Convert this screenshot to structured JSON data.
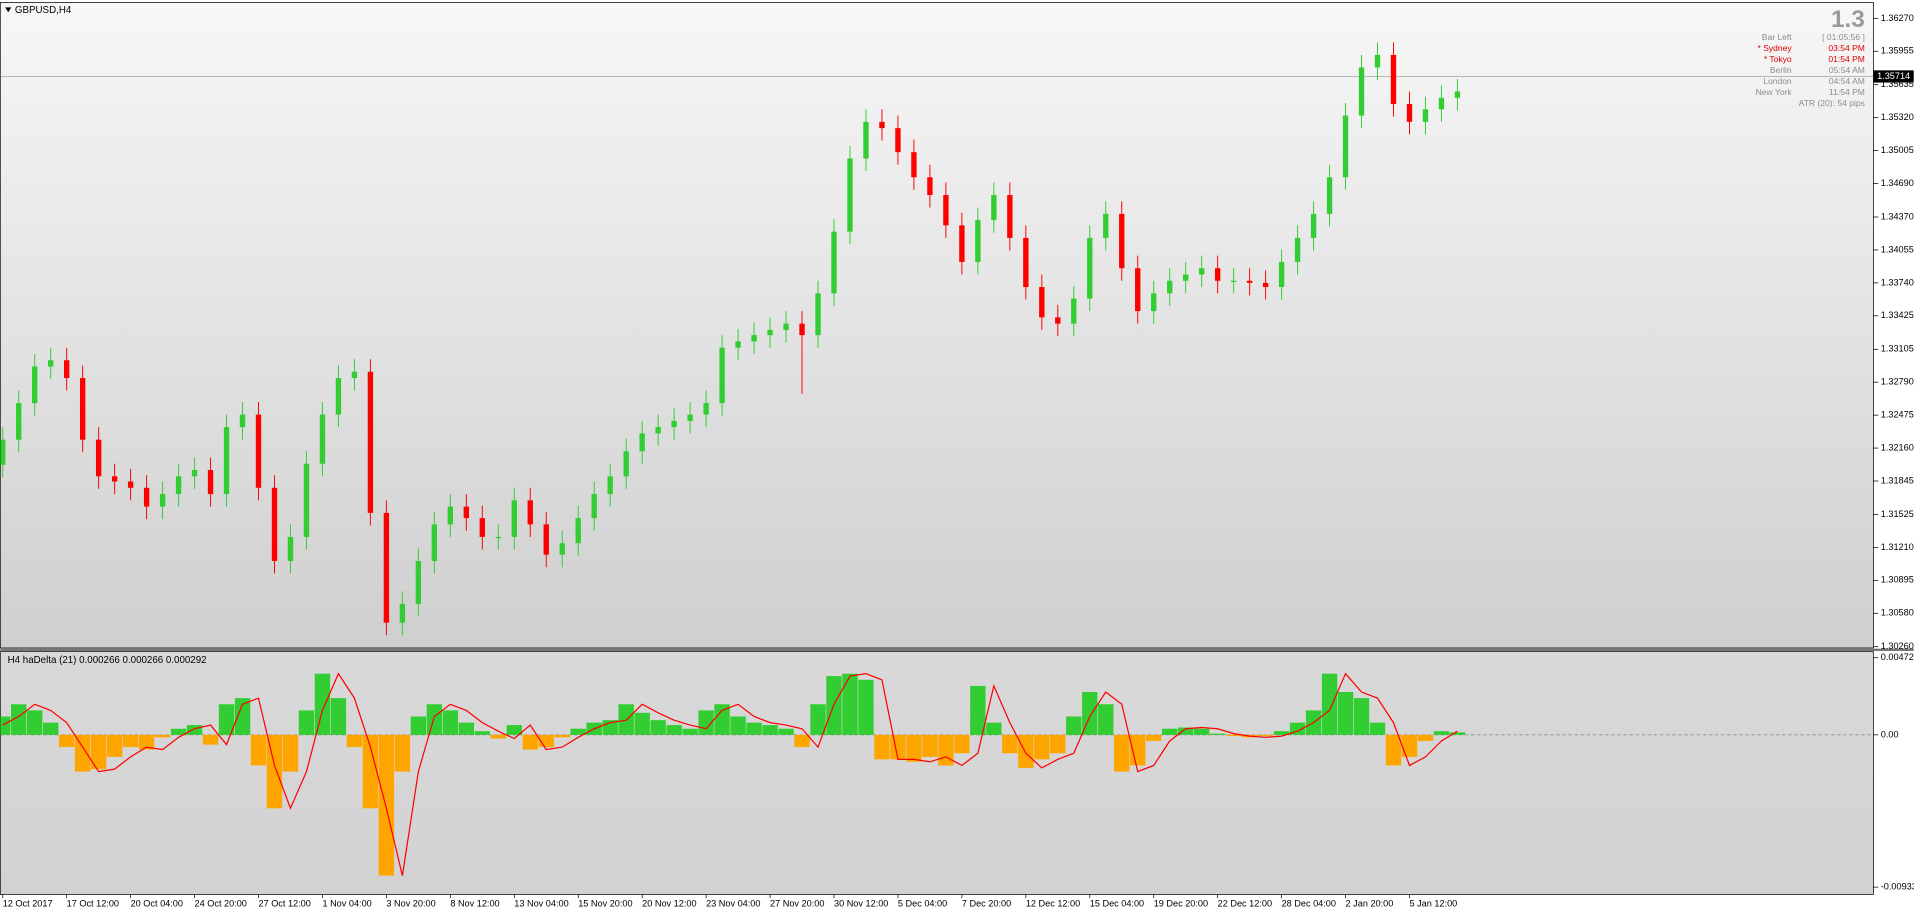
{
  "window_title": "GBPUSD,H4",
  "info_panel": {
    "big": "1.3",
    "rows": [
      {
        "label": "Bar Left",
        "time": "[ 01:05:56 ]",
        "color": "#8c8c8c"
      },
      {
        "label": "* Sydney",
        "time": "03:54 PM",
        "color": "#e00000"
      },
      {
        "label": "* Tokyo",
        "time": "01:54 PM",
        "color": "#e00000"
      },
      {
        "label": "Berlin",
        "time": "05:54 AM",
        "color": "#8c8c8c"
      },
      {
        "label": "London",
        "time": "04:54 AM",
        "color": "#8c8c8c"
      },
      {
        "label": "New York",
        "time": "11:54 PM",
        "color": "#8c8c8c"
      }
    ],
    "atr": "ATR (20): 54 pips"
  },
  "chart_data": [
    {
      "type": "candlestick",
      "categories": [
        "12 Oct 2017",
        null,
        null,
        null,
        "17 Oct 12:00",
        null,
        null,
        null,
        "20 Oct 04:00",
        null,
        null,
        null,
        "24 Oct 20:00",
        null,
        null,
        null,
        "27 Oct 12:00",
        null,
        null,
        null,
        "1 Nov 04:00",
        null,
        null,
        null,
        "3 Nov 20:00",
        null,
        null,
        null,
        "8 Nov 12:00",
        null,
        null,
        null,
        "13 Nov 04:00",
        null,
        null,
        null,
        "15 Nov 20:00",
        null,
        null,
        null,
        "20 Nov 12:00",
        null,
        null,
        null,
        "23 Nov 04:00",
        null,
        null,
        null,
        "27 Nov 20:00",
        null,
        null,
        null,
        "30 Nov 12:00",
        null,
        null,
        null,
        "5 Dec 04:00",
        null,
        null,
        null,
        "7 Dec 20:00",
        null,
        null,
        null,
        "12 Dec 12:00",
        null,
        null,
        null,
        "15 Dec 04:00",
        null,
        null,
        null,
        "19 Dec 20:00",
        null,
        null,
        null,
        "22 Dec 12:00",
        null,
        null,
        null,
        "28 Dec 04:00",
        null,
        null,
        null,
        "2 Jan 20:00",
        null,
        null,
        null,
        "5 Jan 12:00",
        null,
        null,
        null
      ],
      "open": [
        1.32,
        1.3224,
        1.3259,
        1.3294,
        1.33,
        1.3283,
        1.3224,
        1.3189,
        1.3184,
        1.3178,
        1.316,
        1.3172,
        1.3189,
        1.3195,
        1.3172,
        1.3236,
        1.3248,
        1.3178,
        1.3108,
        1.3131,
        1.3201,
        1.3248,
        1.3283,
        1.3289,
        1.3154,
        1.3049,
        1.3067,
        1.3108,
        1.3143,
        1.316,
        1.3149,
        1.3131,
        1.3131,
        1.3166,
        1.3143,
        1.3114,
        1.3125,
        1.3149,
        1.3172,
        1.3189,
        1.3213,
        1.323,
        1.3236,
        1.3242,
        1.3248,
        1.3259,
        1.3312,
        1.3318,
        1.3324,
        1.3329,
        1.3335,
        1.3324,
        1.3364,
        1.3423,
        1.3493,
        1.3528,
        1.3522,
        1.3499,
        1.3475,
        1.3458,
        1.3429,
        1.3394,
        1.3434,
        1.3458,
        1.3417,
        1.337,
        1.3341,
        1.3335,
        1.3359,
        1.3417,
        1.344,
        1.3388,
        1.3347,
        1.3364,
        1.3376,
        1.3382,
        1.3388,
        1.3376,
        1.3376,
        1.3374,
        1.337,
        1.3394,
        1.3417,
        1.344,
        1.3475,
        1.3534,
        1.358,
        1.3592,
        1.3545,
        1.3528,
        1.354,
        1.3551
      ],
      "high": [
        1.3236,
        1.3271,
        1.3306,
        1.3312,
        1.3312,
        1.3295,
        1.3236,
        1.3201,
        1.3196,
        1.319,
        1.3184,
        1.3201,
        1.3207,
        1.3207,
        1.3248,
        1.326,
        1.326,
        1.319,
        1.3143,
        1.3213,
        1.326,
        1.3295,
        1.3301,
        1.3301,
        1.3166,
        1.3079,
        1.312,
        1.3155,
        1.3172,
        1.3172,
        1.3161,
        1.3143,
        1.3178,
        1.3178,
        1.3155,
        1.3137,
        1.3161,
        1.3184,
        1.3201,
        1.3225,
        1.3242,
        1.3248,
        1.3254,
        1.326,
        1.3271,
        1.3324,
        1.333,
        1.3336,
        1.3341,
        1.3347,
        1.3347,
        1.3376,
        1.3435,
        1.3505,
        1.354,
        1.354,
        1.3534,
        1.3511,
        1.3487,
        1.347,
        1.3441,
        1.3446,
        1.347,
        1.347,
        1.3429,
        1.3382,
        1.3353,
        1.3371,
        1.3429,
        1.3452,
        1.3452,
        1.34,
        1.3376,
        1.3388,
        1.3394,
        1.34,
        1.34,
        1.3388,
        1.3388,
        1.3386,
        1.3406,
        1.3429,
        1.3452,
        1.3487,
        1.3546,
        1.3592,
        1.3604,
        1.3604,
        1.3557,
        1.3552,
        1.3563,
        1.3569
      ],
      "low": [
        1.3188,
        1.3212,
        1.3247,
        1.3282,
        1.3271,
        1.3212,
        1.3177,
        1.3172,
        1.3166,
        1.3148,
        1.3148,
        1.316,
        1.3177,
        1.316,
        1.316,
        1.3224,
        1.3166,
        1.3096,
        1.3096,
        1.3119,
        1.3189,
        1.3236,
        1.3271,
        1.3142,
        1.3037,
        1.3037,
        1.3055,
        1.3096,
        1.3131,
        1.3137,
        1.3119,
        1.3119,
        1.3119,
        1.3131,
        1.3102,
        1.3102,
        1.3113,
        1.3137,
        1.316,
        1.3177,
        1.3201,
        1.3218,
        1.3224,
        1.323,
        1.3236,
        1.3247,
        1.33,
        1.3306,
        1.3312,
        1.3317,
        1.3268,
        1.3312,
        1.3352,
        1.3411,
        1.3481,
        1.351,
        1.3487,
        1.3463,
        1.3446,
        1.3417,
        1.3382,
        1.3382,
        1.3422,
        1.3405,
        1.3358,
        1.3329,
        1.3323,
        1.3323,
        1.3347,
        1.3405,
        1.3376,
        1.3335,
        1.3335,
        1.3352,
        1.3364,
        1.337,
        1.3364,
        1.3364,
        1.3362,
        1.3358,
        1.3358,
        1.3382,
        1.3405,
        1.3428,
        1.3463,
        1.3522,
        1.3568,
        1.3533,
        1.3516,
        1.3516,
        1.3528,
        1.3539
      ],
      "close": [
        1.3224,
        1.3259,
        1.3294,
        1.33,
        1.3283,
        1.3224,
        1.3189,
        1.3184,
        1.3178,
        1.316,
        1.3172,
        1.3189,
        1.3195,
        1.3172,
        1.3236,
        1.3248,
        1.3178,
        1.3108,
        1.3131,
        1.3201,
        1.3248,
        1.3283,
        1.3289,
        1.3154,
        1.3049,
        1.3067,
        1.3108,
        1.3143,
        1.316,
        1.3149,
        1.3131,
        1.3131,
        1.3166,
        1.3143,
        1.3114,
        1.3125,
        1.3149,
        1.3172,
        1.3189,
        1.3213,
        1.323,
        1.3236,
        1.3242,
        1.3248,
        1.3259,
        1.3312,
        1.3318,
        1.3324,
        1.3329,
        1.3335,
        1.3324,
        1.3364,
        1.3423,
        1.3493,
        1.3528,
        1.3522,
        1.3499,
        1.3475,
        1.3458,
        1.3429,
        1.3394,
        1.3434,
        1.3458,
        1.3417,
        1.337,
        1.3341,
        1.3335,
        1.3359,
        1.3417,
        1.344,
        1.3388,
        1.3347,
        1.3364,
        1.3376,
        1.3382,
        1.3388,
        1.3376,
        1.3376,
        1.3374,
        1.337,
        1.3394,
        1.3417,
        1.344,
        1.3475,
        1.3534,
        1.358,
        1.3592,
        1.3545,
        1.3528,
        1.354,
        1.3551,
        1.3557
      ],
      "up_color": "#32cd32",
      "down_color": "#ff0000",
      "current_price": 1.35714,
      "ylim": [
        1.30248,
        1.36422
      ],
      "yticks": [
        {
          "value": 1.3627,
          "label": "1.36270"
        },
        1.35955,
        1.35635,
        {
          "value": 1.3532,
          "label": "1.35320"
        },
        1.35005,
        {
          "value": 1.3469,
          "label": "1.34690"
        },
        {
          "value": 1.3437,
          "label": "1.34370"
        },
        1.34055,
        {
          "value": 1.3374,
          "label": "1.33740"
        },
        1.33425,
        1.33105,
        {
          "value": 1.3279,
          "label": "1.32790"
        },
        1.32475,
        {
          "value": 1.3216,
          "label": "1.32160"
        },
        1.31845,
        1.31525,
        {
          "value": 1.3121,
          "label": "1.31210"
        },
        1.30895,
        {
          "value": 1.3058,
          "label": "1.30580"
        },
        {
          "value": 1.3026,
          "label": "1.30260"
        }
      ]
    },
    {
      "type": "histogram",
      "title": "H4 haDelta (21) 0.000266 0.000266 0.000292",
      "values": [
        0.001125,
        0.001875,
        0.0015,
        0.00075,
        -0.00075,
        -0.00225,
        -0.0021,
        -0.00135,
        -0.00075,
        -0.0009,
        -0.00015,
        0.000375,
        0.0006,
        -0.0006,
        0.001875,
        0.00225,
        -0.001875,
        -0.0045,
        -0.00225,
        0.0015,
        0.00375,
        0.00225,
        -0.00075,
        -0.0045,
        -0.008625,
        -0.00225,
        0.001125,
        0.001875,
        0.0015,
        0.00075,
        0.000225,
        -0.000225,
        0.0006,
        -0.0009,
        -0.00075,
        -0.00015,
        0.000375,
        0.00075,
        0.0009,
        0.001875,
        0.00135,
        0.0009,
        0.0006,
        0.000375,
        0.0015,
        0.001875,
        0.001125,
        0.00075,
        0.0006,
        0.000375,
        -0.00075,
        0.001875,
        0.0036,
        0.00375,
        0.003375,
        -0.0015,
        -0.0015,
        -0.00165,
        -0.00135,
        -0.001875,
        -0.001125,
        0.003,
        0.00075,
        -0.001125,
        -0.002025,
        -0.0015,
        -0.001125,
        0.001125,
        0.002625,
        0.001875,
        -0.00225,
        -0.001875,
        -0.000375,
        0.000375,
        0.00045,
        0.000375,
        7.5e-05,
        -7.5e-05,
        -0.00015,
        -7.5e-05,
        0.000225,
        0.00075,
        0.0015,
        0.00375,
        0.002625,
        0.00225,
        0.00075,
        -0.001875,
        -0.00135,
        -0.000375,
        0.000225,
        0.00015
      ],
      "pos_color": "#32cd32",
      "neg_color": "#ffa500",
      "signal": {
        "color": "#ff0000",
        "values": [
          0.0006,
          0.001125,
          0.001875,
          0.0015,
          0.00075,
          -0.00075,
          -0.00225,
          -0.0021,
          -0.00135,
          -0.00075,
          -0.0009,
          -0.00015,
          0.000375,
          0.0006,
          -0.0006,
          0.001875,
          0.00225,
          -0.001875,
          -0.0045,
          -0.00225,
          0.0015,
          0.00375,
          0.00225,
          -0.00075,
          -0.0045,
          -0.008625,
          -0.00225,
          0.001125,
          0.001875,
          0.0015,
          0.00075,
          0.000225,
          -0.000225,
          0.0006,
          -0.0009,
          -0.00075,
          -0.00015,
          0.000375,
          0.00075,
          0.0009,
          0.001875,
          0.00135,
          0.0009,
          0.0006,
          0.000375,
          0.0015,
          0.001875,
          0.001125,
          0.00075,
          0.0006,
          0.000375,
          -0.00075,
          0.001875,
          0.0036,
          0.00375,
          0.003375,
          -0.0015,
          -0.0015,
          -0.00165,
          -0.00135,
          -0.001875,
          -0.001125,
          0.003,
          0.00075,
          -0.001125,
          -0.002025,
          -0.0015,
          -0.001125,
          0.001125,
          0.002625,
          0.001875,
          -0.00225,
          -0.001875,
          -0.000375,
          0.000375,
          0.00045,
          0.000375,
          7.5e-05,
          -7.5e-05,
          -0.00015,
          -7.5e-05,
          0.000225,
          0.00075,
          0.0015,
          0.00375,
          0.002625,
          0.00225,
          0.00075,
          -0.001875,
          -0.00135,
          -0.000375,
          0.000225
        ]
      },
      "ylim": [
        -0.009781,
        0.0051
      ],
      "yticks": [
        0.004726,
        {
          "value": 0,
          "label": "0.00"
        },
        -0.009332
      ]
    }
  ]
}
